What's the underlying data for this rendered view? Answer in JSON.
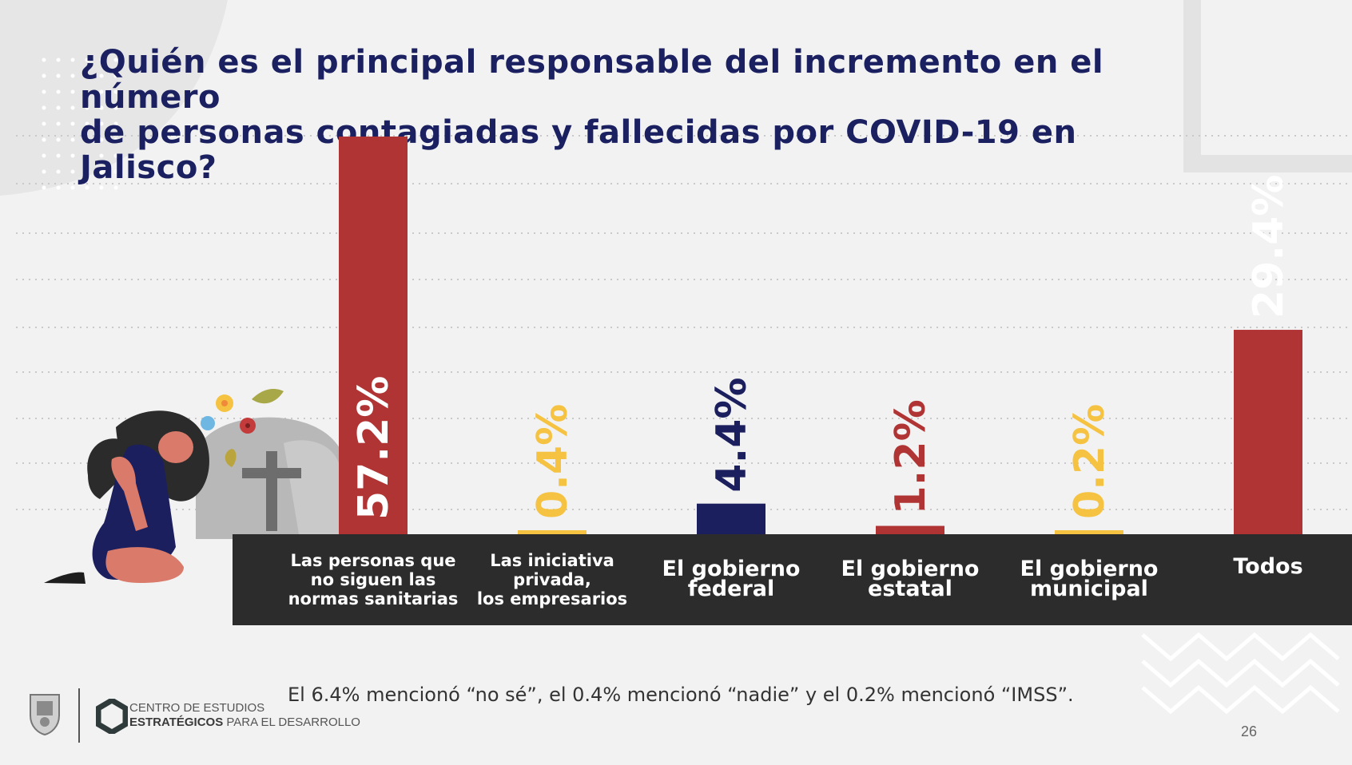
{
  "slide": {
    "title_line1": "¿Quién es el principal responsable del incremento en el número",
    "title_line2": "de personas contagiadas y fallecidas por COVID-19 en Jalisco?",
    "footnote": "El 6.4% mencionó “no sé”, el 0.4% mencionó “nadie” y el 0.2% mencionó “IMSS”.",
    "logo_line1": "CENTRO DE ESTUDIOS",
    "logo_line2_bold": "ESTRATÉGICOS",
    "logo_line2_rest": " PARA EL DESARROLLO",
    "page_number": "26"
  },
  "chart_data": {
    "type": "bar",
    "title": "¿Quién es el principal responsable del incremento en el número de personas contagiadas y fallecidas por COVID-19 en Jalisco?",
    "categories": [
      [
        "Las personas que",
        "no siguen las",
        "normas sanitarias"
      ],
      [
        "Las iniciativa",
        "privada,",
        "los empresarios"
      ],
      [
        "El gobierno",
        "federal"
      ],
      [
        "El gobierno",
        "estatal"
      ],
      [
        "El gobierno",
        "municipal"
      ],
      [
        "Todos"
      ]
    ],
    "values": [
      57.2,
      0.4,
      4.4,
      1.2,
      0.2,
      29.4
    ],
    "value_labels": [
      "57.2%",
      "0.4%",
      "4.4%",
      "1.2%",
      "0.2%",
      "29.4%"
    ],
    "colors": [
      "#b03434",
      "#f5c242",
      "#1c1f5e",
      "#b03434",
      "#f5c242",
      "#b03434"
    ],
    "label_colors": [
      "#ffffff",
      "#f5c242",
      "#1c1f5e",
      "#b03434",
      "#f5c242",
      "#ffffff"
    ],
    "ylim": [
      0,
      57.2
    ],
    "grid": true,
    "legend": "none"
  }
}
